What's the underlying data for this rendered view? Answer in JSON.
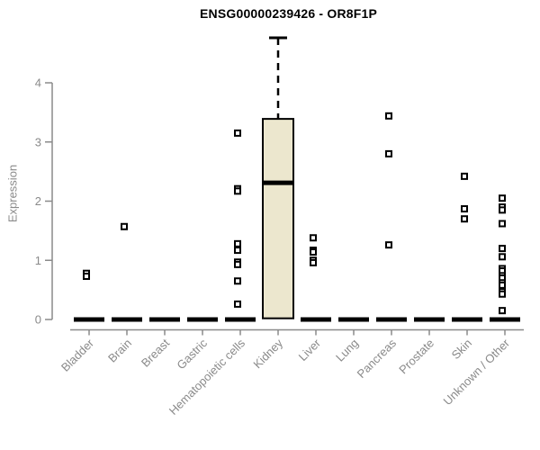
{
  "chart_data": {
    "type": "boxplot",
    "title": "ENSG00000239426 - OR8F1P",
    "ylabel": "Expression",
    "xlabel": "",
    "ylim": [
      0,
      4
    ],
    "yticks": [
      0,
      1,
      2,
      3,
      4
    ],
    "grid": false,
    "legend": "none",
    "categories": [
      "Bladder",
      "Brain",
      "Breast",
      "Gastric",
      "Hematopoietic cells",
      "Kidney",
      "Liver",
      "Lung",
      "Pancreas",
      "Prostate",
      "Skin",
      "Unknown / Other"
    ],
    "boxes": [
      {
        "category": "Bladder",
        "median": 0,
        "q1": 0,
        "q3": 0,
        "whisker_low": 0,
        "whisker_high": 0,
        "outliers": [
          0.78,
          0.73
        ]
      },
      {
        "category": "Brain",
        "median": 0,
        "q1": 0,
        "q3": 0,
        "whisker_low": 0,
        "whisker_high": 0,
        "outliers": [
          1.57
        ]
      },
      {
        "category": "Breast",
        "median": 0,
        "q1": 0,
        "q3": 0,
        "whisker_low": 0,
        "whisker_high": 0,
        "outliers": []
      },
      {
        "category": "Gastric",
        "median": 0,
        "q1": 0,
        "q3": 0,
        "whisker_low": 0,
        "whisker_high": 0,
        "outliers": []
      },
      {
        "category": "Hematopoietic cells",
        "median": 0,
        "q1": 0,
        "q3": 0,
        "whisker_low": 0,
        "whisker_high": 0,
        "outliers": [
          3.15,
          2.21,
          2.17,
          1.28,
          1.17,
          0.97,
          0.93,
          0.65,
          0.26
        ]
      },
      {
        "category": "Kidney",
        "median": 2.31,
        "q1": 0.02,
        "q3": 3.39,
        "whisker_low": 0.02,
        "whisker_high": 4.76,
        "outliers": []
      },
      {
        "category": "Liver",
        "median": 0,
        "q1": 0,
        "q3": 0,
        "whisker_low": 0,
        "whisker_high": 0,
        "outliers": [
          1.38,
          1.17,
          1.14,
          1.0,
          0.96
        ]
      },
      {
        "category": "Lung",
        "median": 0,
        "q1": 0,
        "q3": 0,
        "whisker_low": 0,
        "whisker_high": 0,
        "outliers": []
      },
      {
        "category": "Pancreas",
        "median": 0,
        "q1": 0,
        "q3": 0,
        "whisker_low": 0,
        "whisker_high": 0,
        "outliers": [
          3.44,
          2.8,
          1.26
        ]
      },
      {
        "category": "Prostate",
        "median": 0,
        "q1": 0,
        "q3": 0,
        "whisker_low": 0,
        "whisker_high": 0,
        "outliers": []
      },
      {
        "category": "Skin",
        "median": 0,
        "q1": 0,
        "q3": 0,
        "whisker_low": 0,
        "whisker_high": 0,
        "outliers": [
          2.42,
          1.87,
          1.7
        ]
      },
      {
        "category": "Unknown / Other",
        "median": 0,
        "q1": 0,
        "q3": 0,
        "whisker_low": 0,
        "whisker_high": 0,
        "outliers": [
          2.05,
          1.9,
          1.85,
          1.62,
          1.2,
          1.06,
          0.86,
          0.82,
          0.74,
          0.7,
          0.62,
          0.58,
          0.47,
          0.43,
          0.15
        ]
      }
    ],
    "colors": {
      "box_fill": "#ECE7CE",
      "box_stroke": "#000000",
      "median": "#000000",
      "zero_bar": "#000000",
      "outlier_stroke": "#000000",
      "outlier_fill": "#ffffff",
      "axis": "#8a8a8a",
      "tick_label": "#8a8a8a",
      "title": "#000000",
      "background": "#ffffff"
    }
  }
}
